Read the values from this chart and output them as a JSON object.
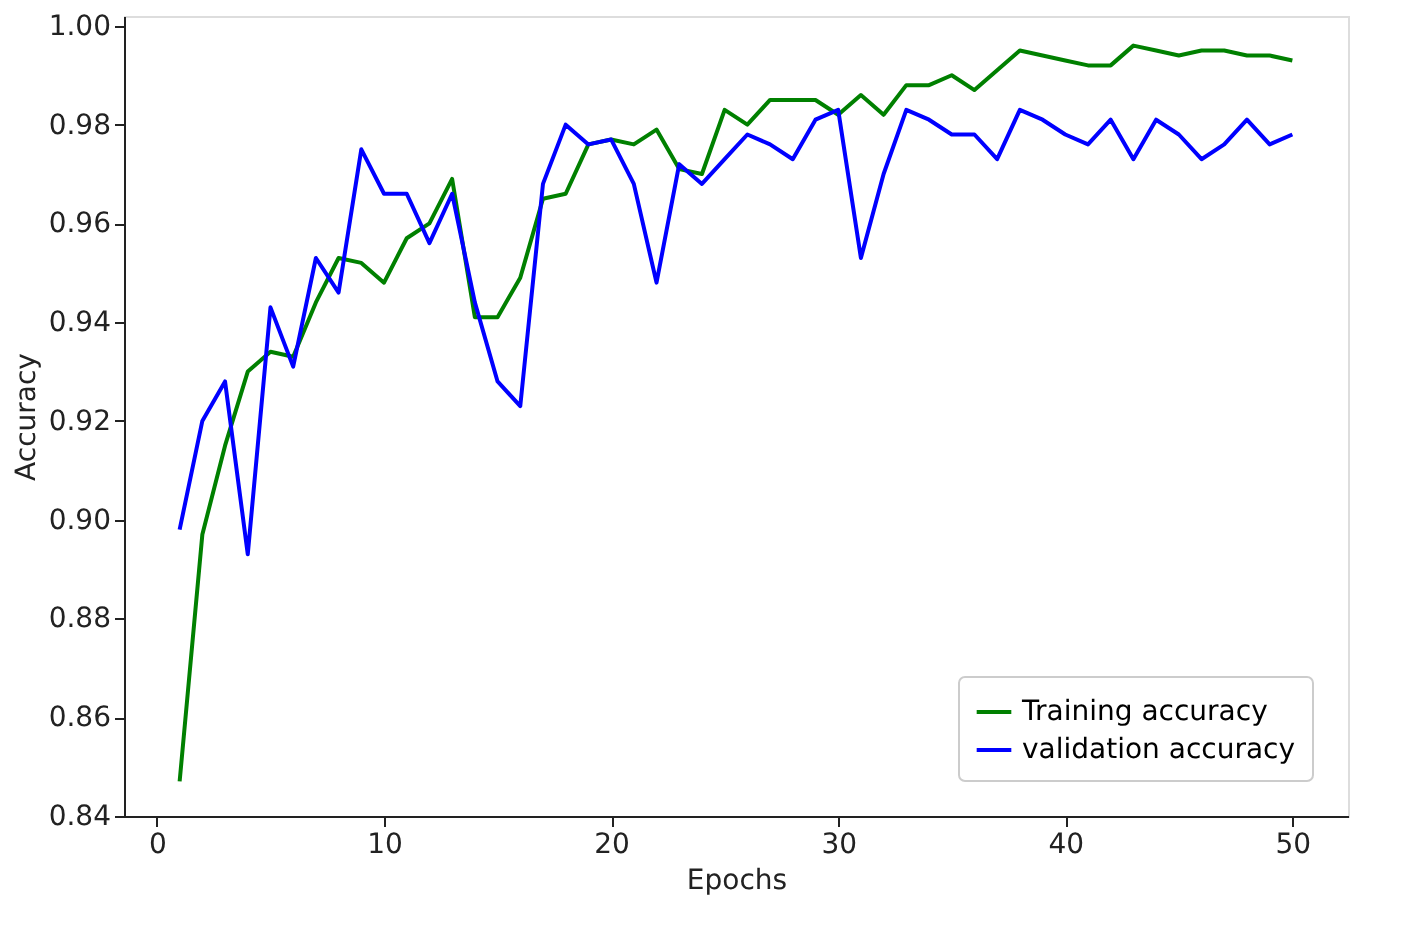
{
  "chart_data": {
    "type": "line",
    "xlabel": "Epochs",
    "ylabel": "Accuracy",
    "x": [
      1,
      2,
      3,
      4,
      5,
      6,
      7,
      8,
      9,
      10,
      11,
      12,
      13,
      14,
      15,
      16,
      17,
      18,
      19,
      20,
      21,
      22,
      23,
      24,
      25,
      26,
      27,
      28,
      29,
      30,
      31,
      32,
      33,
      34,
      35,
      36,
      37,
      38,
      39,
      40,
      41,
      42,
      43,
      44,
      45,
      46,
      47,
      48,
      49,
      50
    ],
    "series": [
      {
        "name": "Training accuracy",
        "color": "#008000",
        "values": [
          0.847,
          0.897,
          0.915,
          0.93,
          0.934,
          0.933,
          0.944,
          0.953,
          0.952,
          0.948,
          0.957,
          0.96,
          0.969,
          0.941,
          0.941,
          0.949,
          0.965,
          0.966,
          0.976,
          0.977,
          0.976,
          0.979,
          0.971,
          0.97,
          0.983,
          0.98,
          0.985,
          0.985,
          0.985,
          0.982,
          0.986,
          0.982,
          0.988,
          0.988,
          0.99,
          0.987,
          0.991,
          0.995,
          0.994,
          0.993,
          0.992,
          0.992,
          0.996,
          0.995,
          0.994,
          0.995,
          0.995,
          0.994,
          0.994,
          0.993
        ]
      },
      {
        "name": "validation accuracy",
        "color": "#0000ff",
        "values": [
          0.898,
          0.92,
          0.928,
          0.893,
          0.943,
          0.931,
          0.953,
          0.946,
          0.975,
          0.966,
          0.966,
          0.956,
          0.966,
          0.944,
          0.928,
          0.923,
          0.968,
          0.98,
          0.976,
          0.977,
          0.968,
          0.948,
          0.972,
          0.968,
          0.973,
          0.978,
          0.976,
          0.973,
          0.981,
          0.983,
          0.953,
          0.97,
          0.983,
          0.981,
          0.978,
          0.978,
          0.973,
          0.983,
          0.981,
          0.978,
          0.976,
          0.981,
          0.973,
          0.981,
          0.978,
          0.973,
          0.976,
          0.981,
          0.976,
          0.978
        ]
      }
    ],
    "xlim": [
      -1.45,
      52.45
    ],
    "xticks": [
      0,
      10,
      20,
      30,
      40,
      50
    ],
    "ylim": [
      0.84,
      1.002
    ],
    "yticks": [
      0.84,
      0.86,
      0.88,
      {
        "value": 0.9,
        "label": "0.90"
      },
      0.92,
      0.94,
      0.96,
      0.98,
      {
        "value": 1.0,
        "label": "1.00"
      }
    ],
    "grid": false,
    "legend": "bottom right",
    "marker": "none",
    "line_style": "solid"
  }
}
